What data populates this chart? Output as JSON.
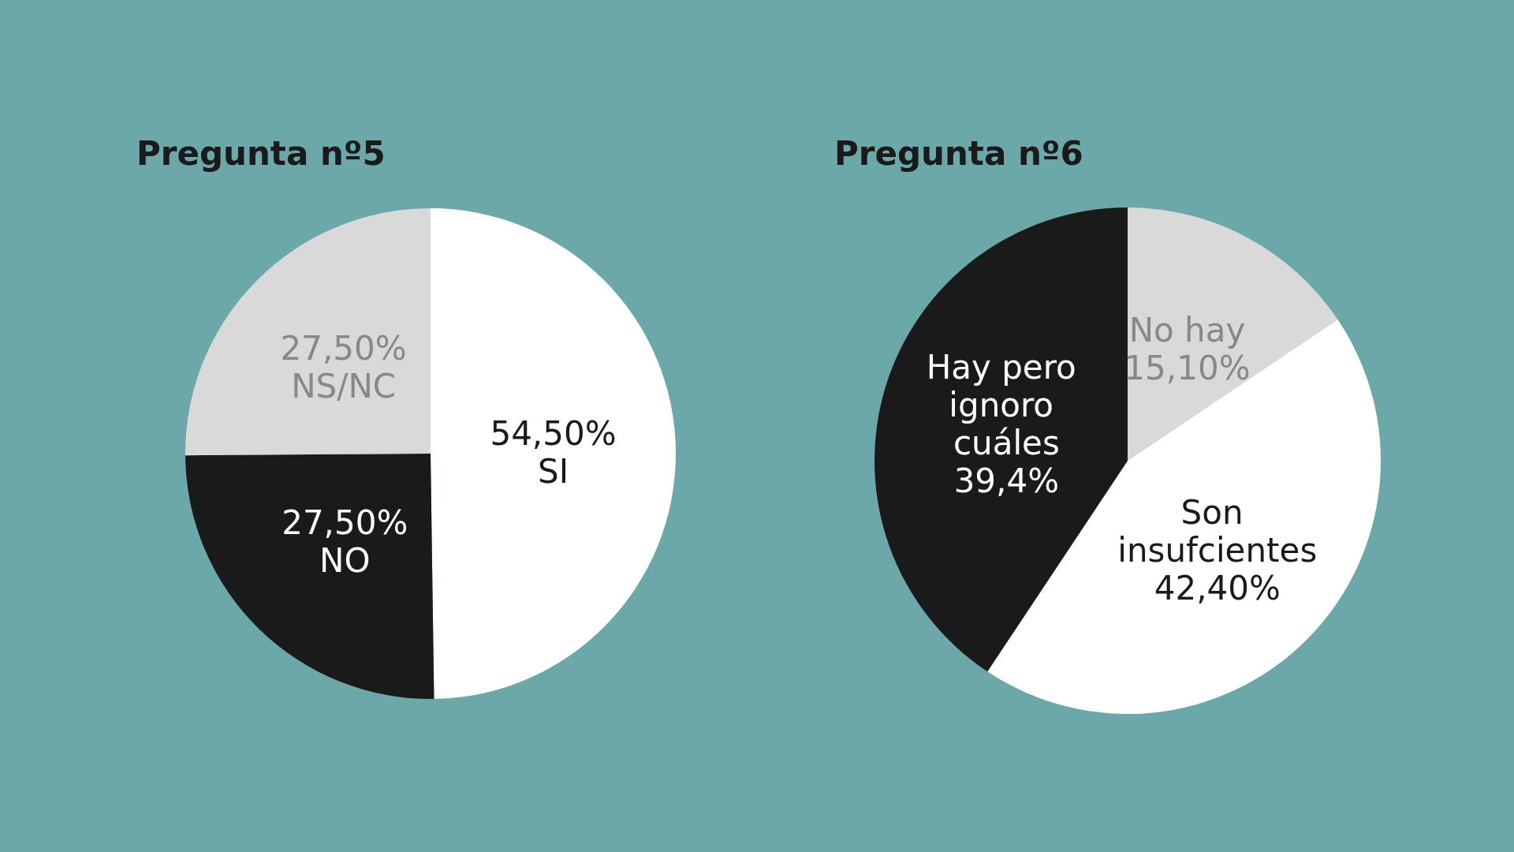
{
  "chart_data": [
    {
      "type": "pie",
      "title": "Pregunta nº5",
      "categories": [
        "SI",
        "NO",
        "NS/NC"
      ],
      "values": [
        54.5,
        27.5,
        27.5
      ],
      "value_labels": [
        "54,50%",
        "27,50%",
        "27,50%"
      ],
      "colors": [
        "#ffffff",
        "#1a1a1a",
        "#d9d9d9"
      ]
    },
    {
      "type": "pie",
      "title": "Pregunta nº6",
      "categories": [
        "No hay",
        "Son insufcientes",
        "Hay pero ignoro cuáles"
      ],
      "values": [
        15.1,
        42.4,
        39.4
      ],
      "value_labels": [
        "15,10%",
        "42,40%",
        "39,4%"
      ],
      "colors": [
        "#d9d9d9",
        "#ffffff",
        "#1a1a1a"
      ]
    }
  ]
}
